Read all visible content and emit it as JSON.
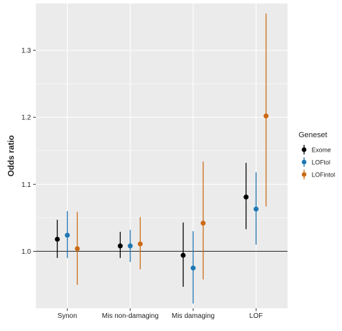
{
  "colors": {
    "panel_bg": "#ebebeb",
    "gridline": "#ffffff",
    "reference_line": "#333333",
    "text": "#222222",
    "exome": "#000000",
    "loftol": "#1f77b4",
    "lofintol": "#cc6a14"
  },
  "chart_data": {
    "type": "scatter",
    "subtype": "point-range",
    "ylabel": "Odds ratio",
    "xlabel": "",
    "categories": [
      "Synon",
      "Mis non-damaging",
      "Mis damaging",
      "LOF"
    ],
    "ylim": [
      0.915,
      1.37
    ],
    "yticks": [
      1.0,
      1.1,
      1.2,
      1.3
    ],
    "ytick_labels": [
      "1.0",
      "1.1",
      "1.2",
      "1.3"
    ],
    "reference_line": 1.0,
    "grid": true,
    "legend": {
      "title": "Geneset",
      "position": "right"
    },
    "series": [
      {
        "name": "Exome",
        "color_key": "exome",
        "estimate": [
          1.018,
          1.008,
          0.994,
          1.081
        ],
        "lower": [
          0.99,
          0.99,
          0.947,
          1.033
        ],
        "upper": [
          1.047,
          1.029,
          1.043,
          1.132
        ]
      },
      {
        "name": "LOFtol",
        "color_key": "loftol",
        "estimate": [
          1.024,
          1.008,
          0.975,
          1.063
        ],
        "lower": [
          0.99,
          0.984,
          0.922,
          1.01
        ],
        "upper": [
          1.06,
          1.032,
          1.03,
          1.118
        ]
      },
      {
        "name": "LOFintol",
        "color_key": "lofintol",
        "estimate": [
          1.004,
          1.011,
          1.042,
          1.202
        ],
        "lower": [
          0.95,
          0.973,
          0.958,
          1.067
        ],
        "upper": [
          1.059,
          1.051,
          1.134,
          1.355
        ]
      }
    ]
  }
}
